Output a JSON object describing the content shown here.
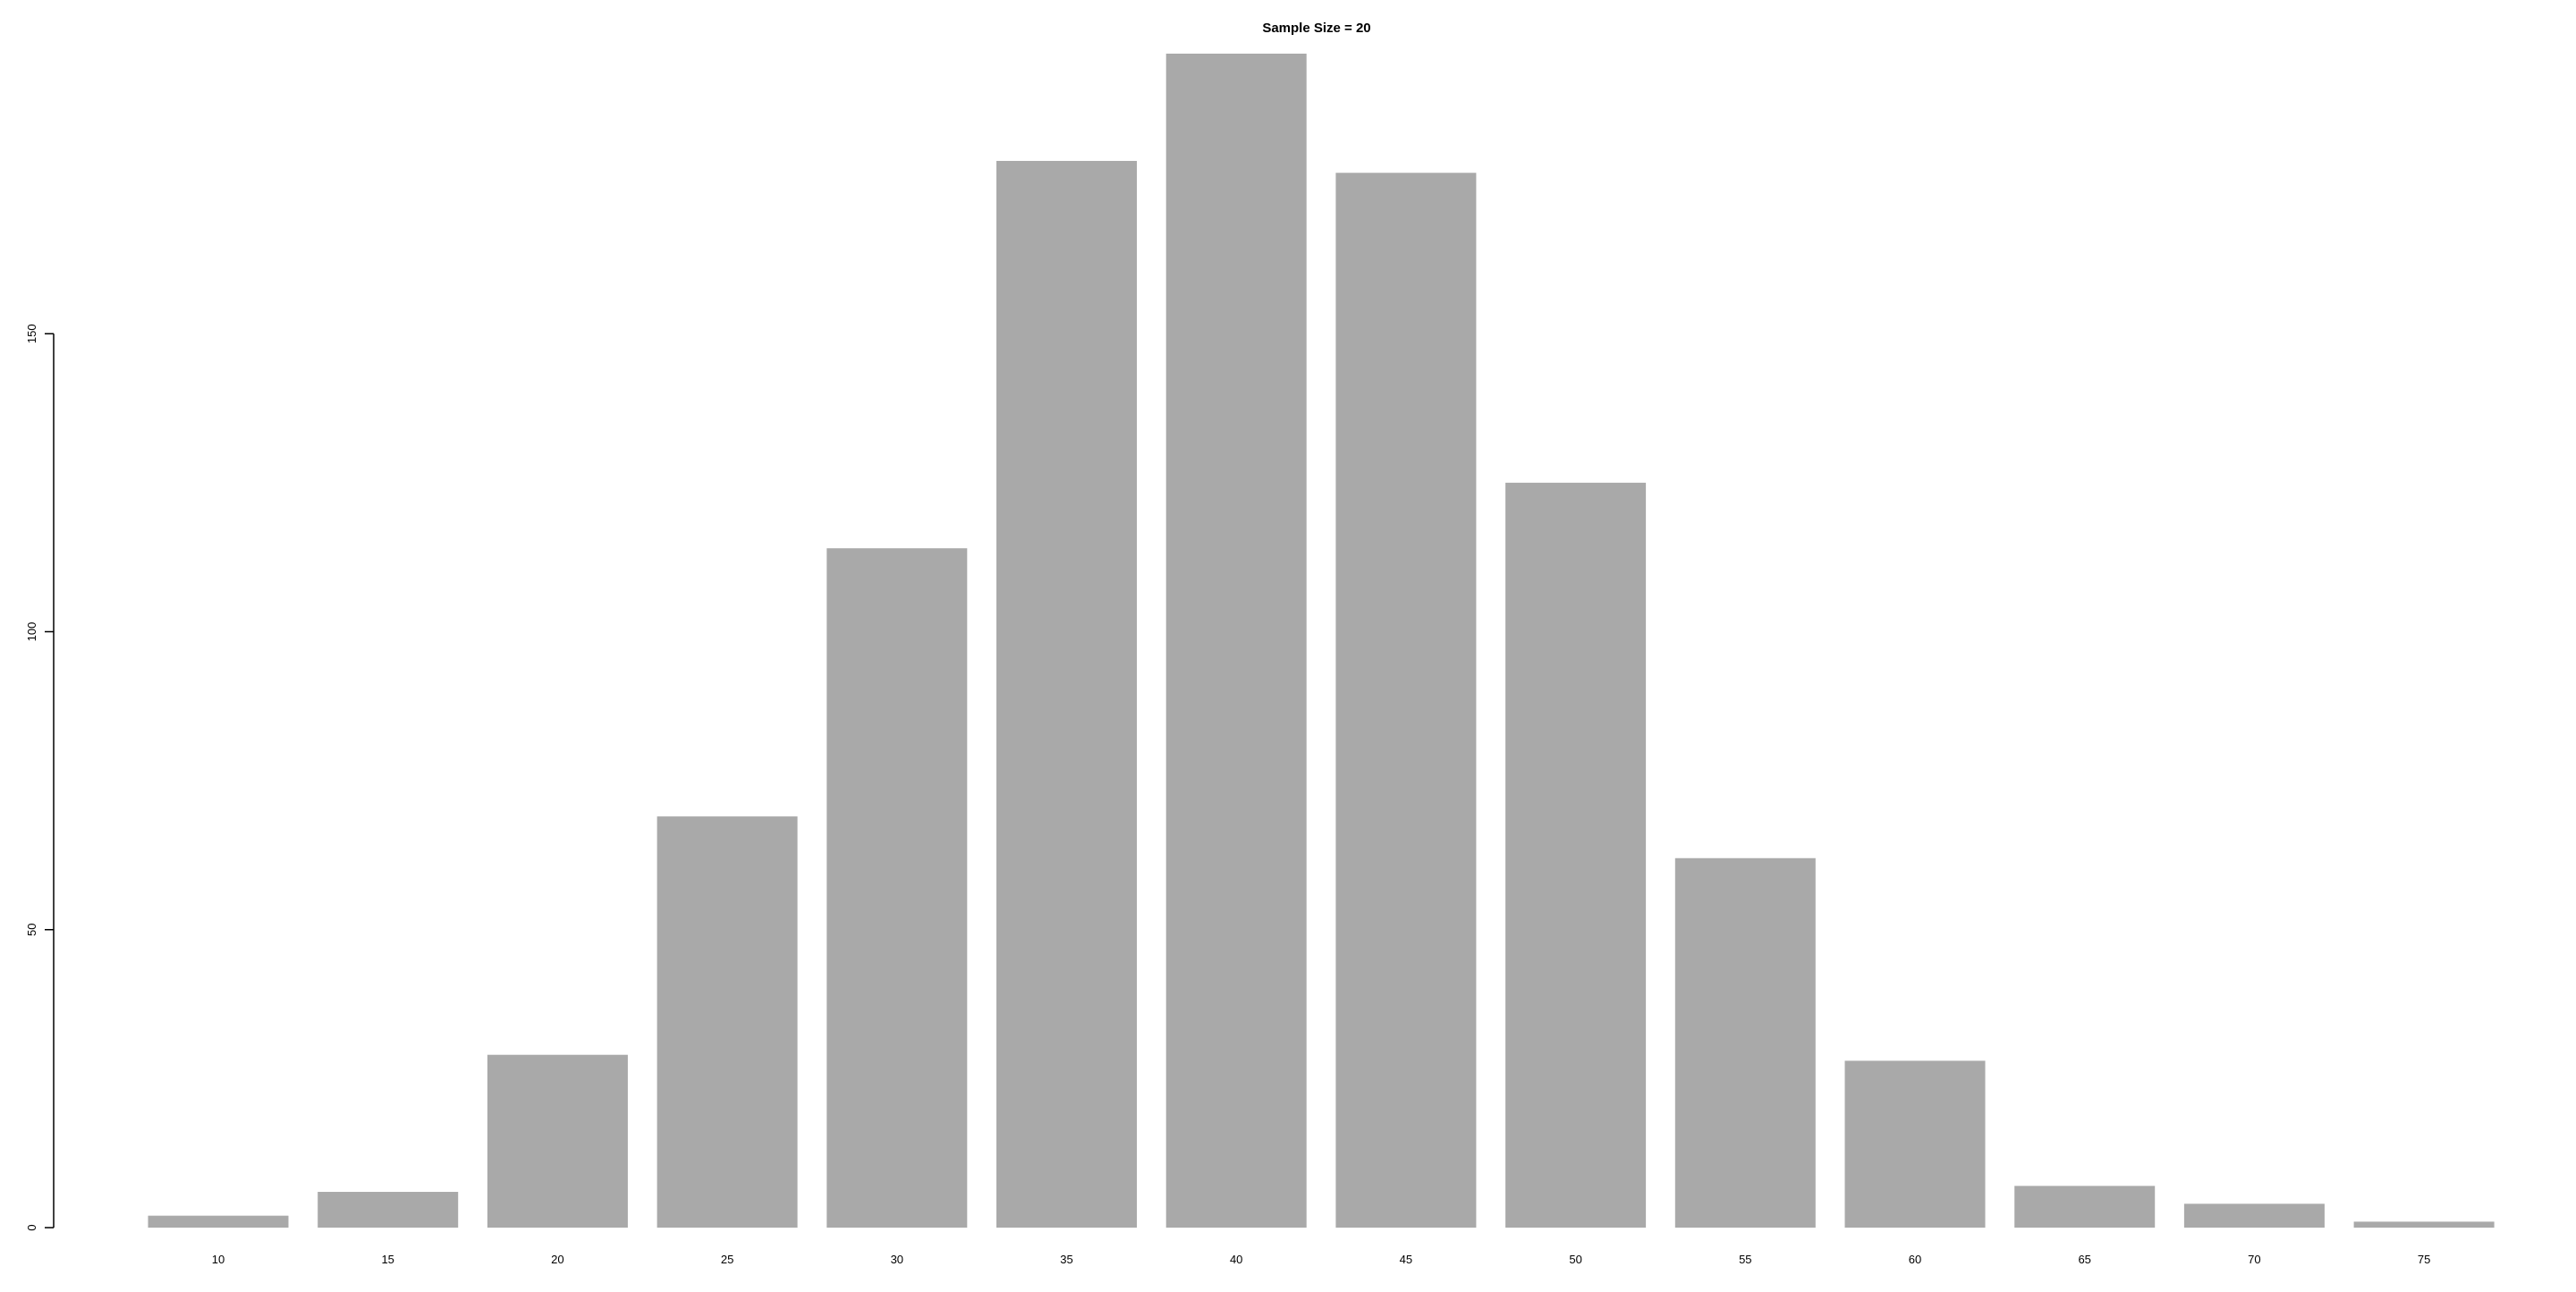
{
  "chart_data": {
    "type": "bar",
    "title": "Sample Size = 20",
    "xlabel": "",
    "ylabel": "",
    "categories": [
      "10",
      "15",
      "20",
      "25",
      "30",
      "35",
      "40",
      "45",
      "50",
      "55",
      "60",
      "65",
      "70",
      "75"
    ],
    "values": [
      2,
      6,
      29,
      69,
      114,
      179,
      197,
      177,
      125,
      62,
      28,
      7,
      4,
      1
    ],
    "ylim": [
      0,
      197
    ],
    "yticks": [
      0,
      50,
      100,
      150
    ],
    "ytick_labels": [
      "0",
      "50",
      "100",
      "150"
    ],
    "grid": false,
    "legend": "none",
    "bar_color": "#a9a9a9",
    "axis_color": "#000000"
  }
}
